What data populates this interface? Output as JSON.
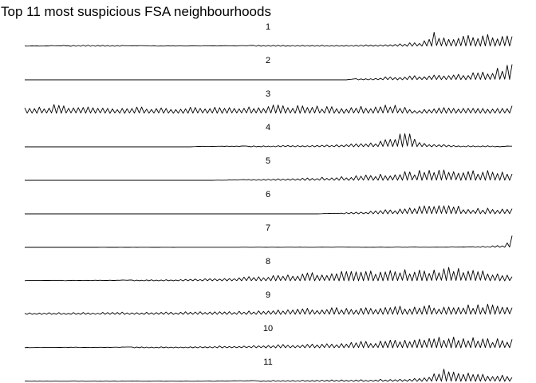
{
  "chart_data": {
    "type": "line",
    "title": "Top 11 most suspicious FSA neighbourhoods",
    "xlabel": "",
    "ylabel": "",
    "grid": false,
    "legend": "none",
    "layout": "small-multiples-stacked",
    "line_color": "#000000",
    "panels": [
      {
        "label": "1",
        "profile": [
          [
            0,
            0.02
          ],
          [
            0.14,
            0.08
          ],
          [
            0.28,
            0.03
          ],
          [
            0.47,
            0.06
          ],
          [
            0.68,
            0.07
          ],
          [
            0.74,
            0.12
          ],
          [
            0.81,
            0.3
          ],
          [
            0.84,
            1.0
          ],
          [
            0.88,
            0.55
          ],
          [
            0.92,
            0.75
          ],
          [
            1.0,
            0.75
          ]
        ]
      },
      {
        "label": "2",
        "profile": [
          [
            0,
            0
          ],
          [
            0.66,
            0.0
          ],
          [
            0.67,
            0.05
          ],
          [
            0.75,
            0.2
          ],
          [
            0.82,
            0.3
          ],
          [
            0.88,
            0.4
          ],
          [
            0.95,
            0.55
          ],
          [
            1.0,
            1.0
          ]
        ]
      },
      {
        "label": "3",
        "profile": [
          [
            0,
            0.35
          ],
          [
            0.06,
            0.55
          ],
          [
            0.15,
            0.4
          ],
          [
            0.3,
            0.4
          ],
          [
            0.45,
            0.45
          ],
          [
            0.52,
            0.6
          ],
          [
            0.65,
            0.4
          ],
          [
            0.76,
            0.55
          ],
          [
            0.8,
            0.25
          ],
          [
            0.88,
            0.4
          ],
          [
            0.95,
            0.3
          ],
          [
            1.0,
            0.55
          ]
        ]
      },
      {
        "label": "4",
        "profile": [
          [
            0,
            0
          ],
          [
            0.34,
            0.0
          ],
          [
            0.35,
            0.03
          ],
          [
            0.5,
            0.07
          ],
          [
            0.62,
            0.12
          ],
          [
            0.68,
            0.22
          ],
          [
            0.72,
            0.3
          ],
          [
            0.78,
            1.0
          ],
          [
            0.82,
            0.25
          ],
          [
            0.88,
            0.1
          ],
          [
            1.0,
            0.05
          ]
        ]
      },
      {
        "label": "5",
        "profile": [
          [
            0,
            0
          ],
          [
            0.38,
            0.0
          ],
          [
            0.42,
            0.03
          ],
          [
            0.55,
            0.12
          ],
          [
            0.65,
            0.25
          ],
          [
            0.75,
            0.45
          ],
          [
            0.85,
            0.8
          ],
          [
            0.9,
            0.6
          ],
          [
            1.0,
            0.65
          ]
        ]
      },
      {
        "label": "6",
        "profile": [
          [
            0,
            0
          ],
          [
            0.6,
            0.0
          ],
          [
            0.62,
            0.03
          ],
          [
            0.68,
            0.1
          ],
          [
            0.75,
            0.3
          ],
          [
            0.82,
            0.5
          ],
          [
            0.85,
            0.85
          ],
          [
            0.9,
            0.4
          ],
          [
            1.0,
            0.4
          ]
        ]
      },
      {
        "label": "7",
        "profile": [
          [
            0,
            0
          ],
          [
            0.88,
            0.02
          ],
          [
            0.92,
            0.06
          ],
          [
            0.96,
            0.1
          ],
          [
            0.985,
            0.15
          ],
          [
            1.0,
            1.0
          ]
        ]
      },
      {
        "label": "8",
        "profile": [
          [
            0,
            0.03
          ],
          [
            0.2,
            0.05
          ],
          [
            0.32,
            0.1
          ],
          [
            0.45,
            0.25
          ],
          [
            0.55,
            0.45
          ],
          [
            0.66,
            0.65
          ],
          [
            0.76,
            0.75
          ],
          [
            0.86,
            0.85
          ],
          [
            0.92,
            0.85
          ],
          [
            1.0,
            0.4
          ]
        ]
      },
      {
        "label": "9",
        "profile": [
          [
            0,
            0.1
          ],
          [
            0.25,
            0.15
          ],
          [
            0.45,
            0.2
          ],
          [
            0.58,
            0.4
          ],
          [
            0.68,
            0.45
          ],
          [
            0.8,
            0.6
          ],
          [
            0.9,
            0.6
          ],
          [
            1.0,
            0.7
          ]
        ]
      },
      {
        "label": "10",
        "profile": [
          [
            0,
            0.03
          ],
          [
            0.3,
            0.07
          ],
          [
            0.45,
            0.15
          ],
          [
            0.6,
            0.3
          ],
          [
            0.72,
            0.45
          ],
          [
            0.82,
            0.6
          ],
          [
            0.88,
            0.8
          ],
          [
            0.94,
            0.6
          ],
          [
            1.0,
            0.6
          ]
        ]
      },
      {
        "label": "11",
        "profile": [
          [
            0,
            0.02
          ],
          [
            0.35,
            0.02
          ],
          [
            0.55,
            0.08
          ],
          [
            0.7,
            0.12
          ],
          [
            0.8,
            0.2
          ],
          [
            0.83,
            0.35
          ],
          [
            0.86,
            1.0
          ],
          [
            0.9,
            0.55
          ],
          [
            0.95,
            0.45
          ],
          [
            1.0,
            0.35
          ]
        ]
      }
    ]
  }
}
